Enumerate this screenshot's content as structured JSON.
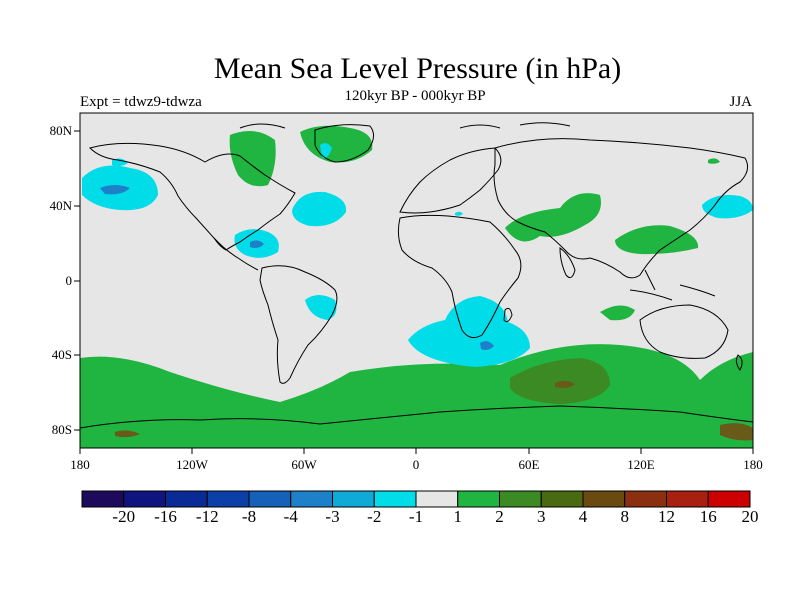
{
  "title": "Mean Sea Level Pressure (in hPa)",
  "subtitle": "120kyr BP - 000kyr BP",
  "experiment": "Expt = tdwz9-tdwza",
  "season": "JJA",
  "lat_labels": [
    "80N",
    "40N",
    "0",
    "40S",
    "80S"
  ],
  "lon_labels": [
    "180",
    "120W",
    "60W",
    "0",
    "60E",
    "120E",
    "180"
  ],
  "colorbar": {
    "labels": [
      "-20",
      "-16",
      "-12",
      "-8",
      "-4",
      "-3",
      "-2",
      "-1",
      "1",
      "2",
      "3",
      "4",
      "8",
      "12",
      "16",
      "20"
    ],
    "colors": [
      "#1e0a5a",
      "#0f147f",
      "#0a2a96",
      "#0d3fa8",
      "#1560b8",
      "#1e80c8",
      "#10aad6",
      "#00dde8",
      "#e6e6e6",
      "#20b440",
      "#3c8a23",
      "#4a6a12",
      "#6a4a10",
      "#8a3010",
      "#a82010",
      "#cc0000"
    ]
  },
  "colors": {
    "background": "#e6e6e6",
    "cyan": "#00dde8",
    "blue": "#1e80c8",
    "green": "#20b440",
    "dark_green": "#3c8a23",
    "brown": "#6a5a1a"
  }
}
